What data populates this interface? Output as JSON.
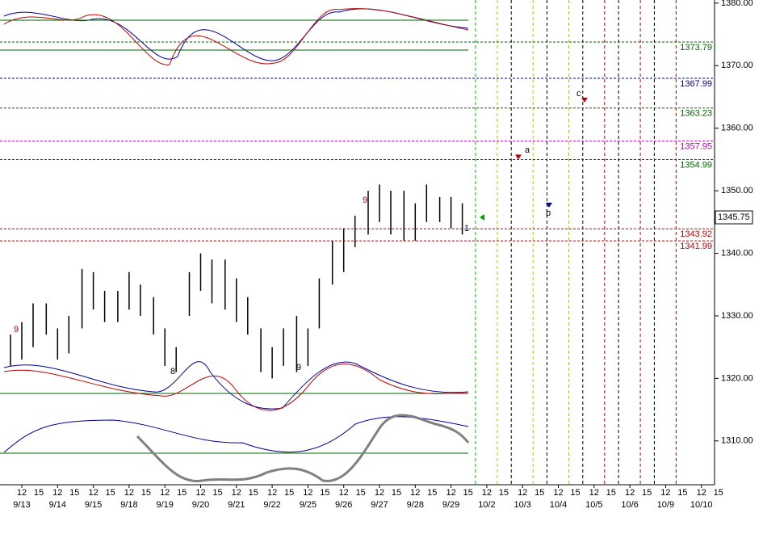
{
  "chart_data": {
    "type": "range-bar",
    "ylim": [
      1303,
      1380.5
    ],
    "yticks": [
      {
        "value": 1380,
        "label": "1380.00"
      },
      {
        "value": 1370,
        "label": "1370.00"
      },
      {
        "value": 1360,
        "label": "1360.00"
      },
      {
        "value": 1350,
        "label": "1350.00"
      },
      {
        "value": 1340,
        "label": "1340.00"
      },
      {
        "value": 1330,
        "label": "1330.00"
      },
      {
        "value": 1320,
        "label": "1320.00"
      },
      {
        "value": 1310,
        "label": "1310.00"
      }
    ],
    "categories": [
      "9/13",
      "9/14",
      "9/15",
      "9/18",
      "9/19",
      "9/20",
      "9/21",
      "9/22",
      "9/25",
      "9/26",
      "9/27",
      "9/28",
      "9/29",
      "10/2",
      "10/3",
      "10/4",
      "10/5",
      "10/6",
      "10/9",
      "10/10"
    ],
    "hour_labels": [
      "12",
      "15"
    ],
    "bar_color": "#000000",
    "bars": [
      [
        [
          1322,
          1327
        ],
        [
          1323,
          1329
        ],
        [
          1325,
          1332
        ]
      ],
      [
        [
          1327,
          1332
        ],
        [
          1323,
          1328
        ],
        [
          1324,
          1330
        ]
      ],
      [
        [
          1328,
          1337.5
        ],
        [
          1331,
          1337
        ],
        [
          1329,
          1334
        ]
      ],
      [
        [
          1329,
          1334
        ],
        [
          1331,
          1337
        ],
        [
          1330,
          1335
        ]
      ],
      [
        [
          1327,
          1333
        ],
        [
          1322,
          1328
        ],
        [
          1321,
          1325
        ]
      ],
      [
        [
          1330,
          1337
        ],
        [
          1334,
          1340
        ],
        [
          1332,
          1339
        ]
      ],
      [
        [
          1331,
          1339
        ],
        [
          1329,
          1336
        ],
        [
          1327,
          1333
        ]
      ],
      [
        [
          1321,
          1328
        ],
        [
          1320,
          1325
        ],
        [
          1322,
          1328
        ]
      ],
      [
        [
          1321,
          1330
        ],
        [
          1322,
          1328
        ],
        [
          1328,
          1336
        ]
      ],
      [
        [
          1335,
          1342
        ],
        [
          1337,
          1344
        ],
        [
          1341,
          1346
        ]
      ],
      [
        [
          1343,
          1350
        ],
        [
          1345,
          1351
        ],
        [
          1343,
          1350
        ]
      ],
      [
        [
          1342,
          1350
        ],
        [
          1342,
          1348
        ],
        [
          1345,
          1351
        ]
      ],
      [
        [
          1345,
          1349
        ],
        [
          1344,
          1349
        ],
        [
          1343,
          1348
        ]
      ]
    ],
    "levels": [
      {
        "value": 1373.79,
        "color": "#006400"
      },
      {
        "value": 1367.99,
        "color": "#000080"
      },
      {
        "value": 1363.23,
        "color": "#006400"
      },
      {
        "value": 1357.95,
        "color": "#c000c0"
      },
      {
        "value": 1354.99,
        "color": "#006400"
      },
      {
        "value": 1343.92,
        "color": "#c00000"
      },
      {
        "value": 1341.99,
        "color": "#c00000"
      }
    ],
    "last_price": 1345.75,
    "projections": [
      {
        "label": "a",
        "value": 1355.4,
        "color": "#c00000"
      },
      {
        "label": "b",
        "value": 1347.7,
        "color": "#0000c0"
      },
      {
        "label": "c",
        "value": 1364.5,
        "color": "#c00000"
      }
    ],
    "annotations": [
      "9",
      "8",
      "9",
      "9",
      "1"
    ]
  }
}
